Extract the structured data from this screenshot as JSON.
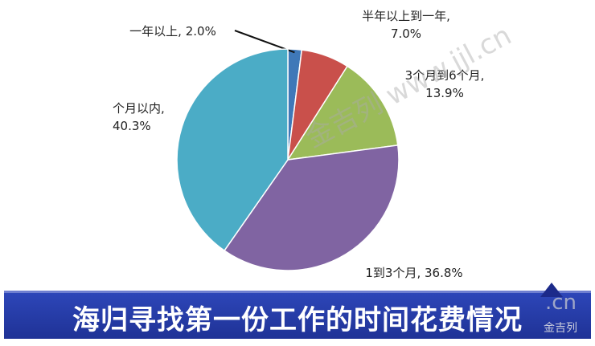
{
  "chart_data": {
    "type": "pie",
    "title": "海归寻找第一份工作的时间花费情况",
    "slices": [
      {
        "label": "一年以上, 2.0%",
        "value": 2.0,
        "color": "#3f78b8"
      },
      {
        "label": "半年以上到一年,\n7.0%",
        "value": 7.0,
        "color": "#c9504b"
      },
      {
        "label": "3个月到6个月,\n13.9%",
        "value": 13.9,
        "color": "#9bbb59"
      },
      {
        "label": "1到3个月, 36.8%",
        "value": 36.8,
        "color": "#8064a2"
      },
      {
        "label": "个月以内,\n40.3%",
        "value": 40.3,
        "color": "#4bacc6"
      }
    ]
  },
  "watermarks": {
    "main": "金吉列 www.jjl.cn",
    "corner_domain": ".cn",
    "corner_brand": "金吉列"
  }
}
